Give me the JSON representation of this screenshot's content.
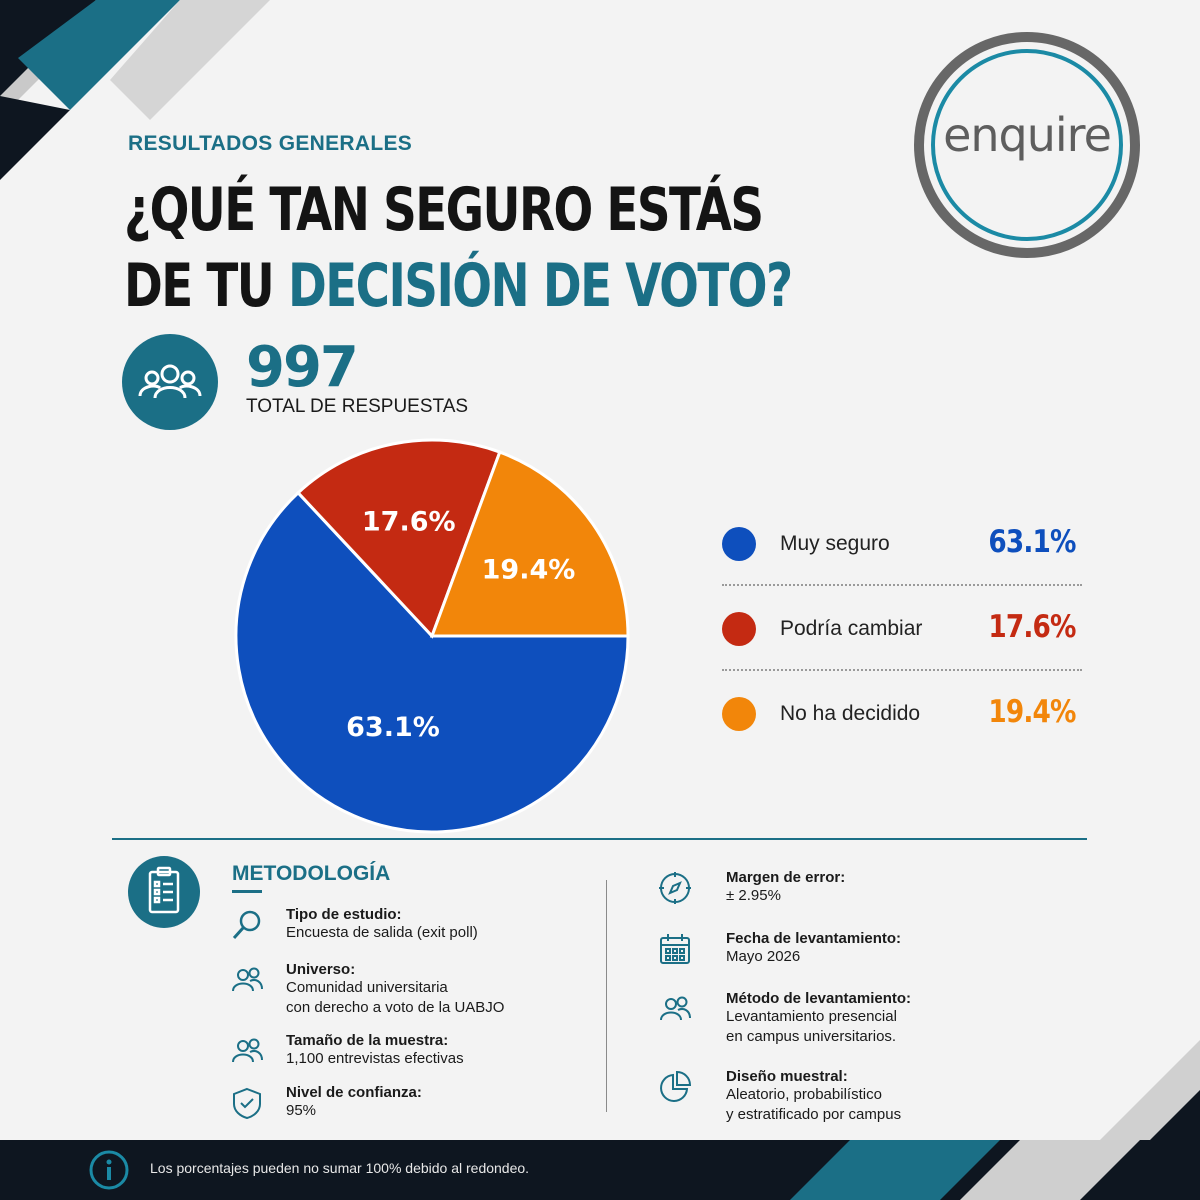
{
  "header": {
    "section_label": "RESULTADOS GENERALES",
    "title_line1": "¿QUÉ TAN SEGURO ESTÁS",
    "title_line2_plain": "DE TU ",
    "title_line2_accent": "DECISIÓN DE VOTO?"
  },
  "brand": {
    "logo_text": "enquire",
    "accent": "#1b6f86"
  },
  "responses": {
    "total": "997",
    "label": "TOTAL DE RESPUESTAS",
    "icon": "group-icon"
  },
  "chart_data": {
    "type": "pie",
    "slices": [
      {
        "label": "Muy seguro",
        "value": 63.1,
        "display": "63.1%",
        "color": "#0e4fbd"
      },
      {
        "label": "Podría cambiar",
        "value": 17.6,
        "display": "17.6%",
        "color": "#c42a12"
      },
      {
        "label": "No ha decidido",
        "value": 19.4,
        "display": "19.4%",
        "color": "#f2860a"
      }
    ]
  },
  "methodology": {
    "title": "METODOLOGÍA",
    "left_items": [
      {
        "icon": "magnifier-icon",
        "head": "Tipo de estudio:",
        "body": [
          "Encuesta de salida (exit poll)"
        ]
      },
      {
        "icon": "people-icon",
        "head": "Universo:",
        "body": [
          "Comunidad universitaria",
          "con derecho a voto de la UABJO"
        ]
      },
      {
        "icon": "people-icon",
        "head": "Tamaño de la muestra:",
        "body": [
          "1,100 entrevistas efectivas"
        ]
      },
      {
        "icon": "shield-check-icon",
        "head": "Nivel de confianza:",
        "body": [
          "95%"
        ]
      }
    ],
    "right_items": [
      {
        "icon": "compass-icon",
        "head": "Margen de error:",
        "body": [
          "± 2.95%"
        ]
      },
      {
        "icon": "calendar-icon",
        "head": "Fecha de levantamiento:",
        "body": [
          "Mayo 2026"
        ]
      },
      {
        "icon": "people-icon",
        "head": "Método de levantamiento:",
        "body": [
          "Levantamiento presencial",
          "en campus universitarios."
        ]
      },
      {
        "icon": "pie-chart-icon",
        "head": "Diseño muestral:",
        "body": [
          "Aleatorio, probabilístico",
          "y estratificado por campus"
        ]
      }
    ]
  },
  "footer": {
    "note": "Los porcentajes pueden no sumar 100% debido al redondeo.",
    "icon": "info-icon"
  }
}
